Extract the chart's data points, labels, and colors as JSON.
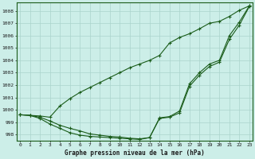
{
  "bg_color": "#cceee8",
  "grid_color": "#aad4cc",
  "line_color": "#1a5c1a",
  "title": "Graphe pression niveau de la mer (hPa)",
  "ylim": [
    997.5,
    1008.7
  ],
  "yticks": [
    998,
    999,
    1000,
    1001,
    1002,
    1003,
    1004,
    1005,
    1006,
    1007,
    1008
  ],
  "hours": [
    0,
    1,
    2,
    3,
    4,
    5,
    6,
    7,
    8,
    9,
    10,
    11,
    12,
    13,
    14,
    15,
    16,
    17,
    18,
    19,
    20,
    21,
    22,
    23
  ],
  "line_upper": [
    999.6,
    999.55,
    999.5,
    999.4,
    1000.3,
    1000.9,
    1001.4,
    1001.8,
    1002.2,
    1002.6,
    1003.0,
    1003.4,
    1003.7,
    1004.0,
    1004.4,
    1005.4,
    1005.85,
    1006.15,
    1006.55,
    1007.0,
    1007.15,
    1007.55,
    1008.05,
    1008.4
  ],
  "line_mid": [
    999.6,
    999.55,
    999.4,
    999.1,
    998.75,
    998.5,
    998.3,
    998.05,
    997.95,
    997.85,
    997.8,
    997.7,
    997.65,
    997.75,
    999.35,
    999.45,
    999.9,
    1002.1,
    1003.0,
    1003.7,
    1004.0,
    1006.0,
    1007.1,
    1008.4
  ],
  "line_lower": [
    999.6,
    999.55,
    999.3,
    998.85,
    998.5,
    998.15,
    997.95,
    997.85,
    997.8,
    997.75,
    997.7,
    997.65,
    997.6,
    997.75,
    999.3,
    999.4,
    999.75,
    1001.9,
    1002.8,
    1003.5,
    1003.85,
    1005.7,
    1006.85,
    1008.35
  ]
}
